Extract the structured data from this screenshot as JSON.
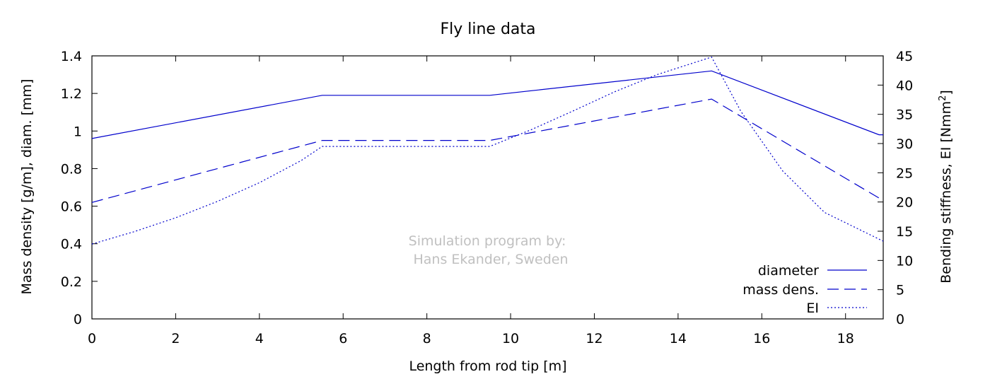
{
  "chart_data": {
    "type": "line",
    "title": "Fly line data",
    "xlabel": "Length from rod tip [m]",
    "ylabel_left": "Mass density [g/m], diam. [mm]",
    "ylabel_right": "Bending stiffness, EI [Nmm",
    "ylabel_right_sup": "2",
    "ylabel_right_close": "]",
    "xlim": [
      0,
      18.9
    ],
    "ylim_left": [
      0,
      1.4
    ],
    "ylim_right": [
      0,
      45
    ],
    "x_ticks": [
      "0",
      "2",
      "4",
      "6",
      "8",
      "10",
      "12",
      "14",
      "16",
      "18"
    ],
    "x_tick_values": [
      0,
      2,
      4,
      6,
      8,
      10,
      12,
      14,
      16,
      18
    ],
    "y_left_ticks": [
      "0",
      "0.2",
      "0.4",
      "0.6",
      "0.8",
      "1",
      "1.2",
      "1.4"
    ],
    "y_left_tick_values": [
      0,
      0.2,
      0.4,
      0.6,
      0.8,
      1.0,
      1.2,
      1.4
    ],
    "y_right_ticks": [
      "0",
      "5",
      "10",
      "15",
      "20",
      "25",
      "30",
      "35",
      "40",
      "45"
    ],
    "y_right_tick_values": [
      0,
      5,
      10,
      15,
      20,
      25,
      30,
      35,
      40,
      45
    ],
    "grid": false,
    "legend_position": "bottom-right",
    "series": [
      {
        "name": "diameter",
        "axis": "left",
        "dash": "solid",
        "color": "#0000cc",
        "x": [
          0,
          5.5,
          9.5,
          14.8,
          18.8,
          18.9
        ],
        "y": [
          0.96,
          1.19,
          1.19,
          1.32,
          0.98,
          0.98
        ]
      },
      {
        "name": "mass dens.",
        "axis": "left",
        "dash": "dashed",
        "color": "#0000cc",
        "x": [
          0,
          5.5,
          9.5,
          14.8,
          18.9
        ],
        "y": [
          0.62,
          0.95,
          0.95,
          1.17,
          0.63
        ]
      },
      {
        "name": "EI",
        "axis": "right",
        "dash": "dotted",
        "color": "#0000cc",
        "x": [
          0,
          1,
          2,
          3,
          4,
          5,
          5.5,
          9.5,
          10.5,
          11.5,
          12.5,
          13.5,
          14.8,
          15.5,
          16.5,
          17.5,
          18.9
        ],
        "y": [
          12.8,
          14.9,
          17.3,
          20.1,
          23.3,
          27.1,
          29.5,
          29.5,
          32.4,
          35.6,
          38.9,
          41.8,
          44.8,
          35.5,
          25.3,
          18.2,
          13.3
        ]
      }
    ],
    "annotation": [
      "Simulation program by:",
      "Hans Ekander, Sweden"
    ]
  }
}
